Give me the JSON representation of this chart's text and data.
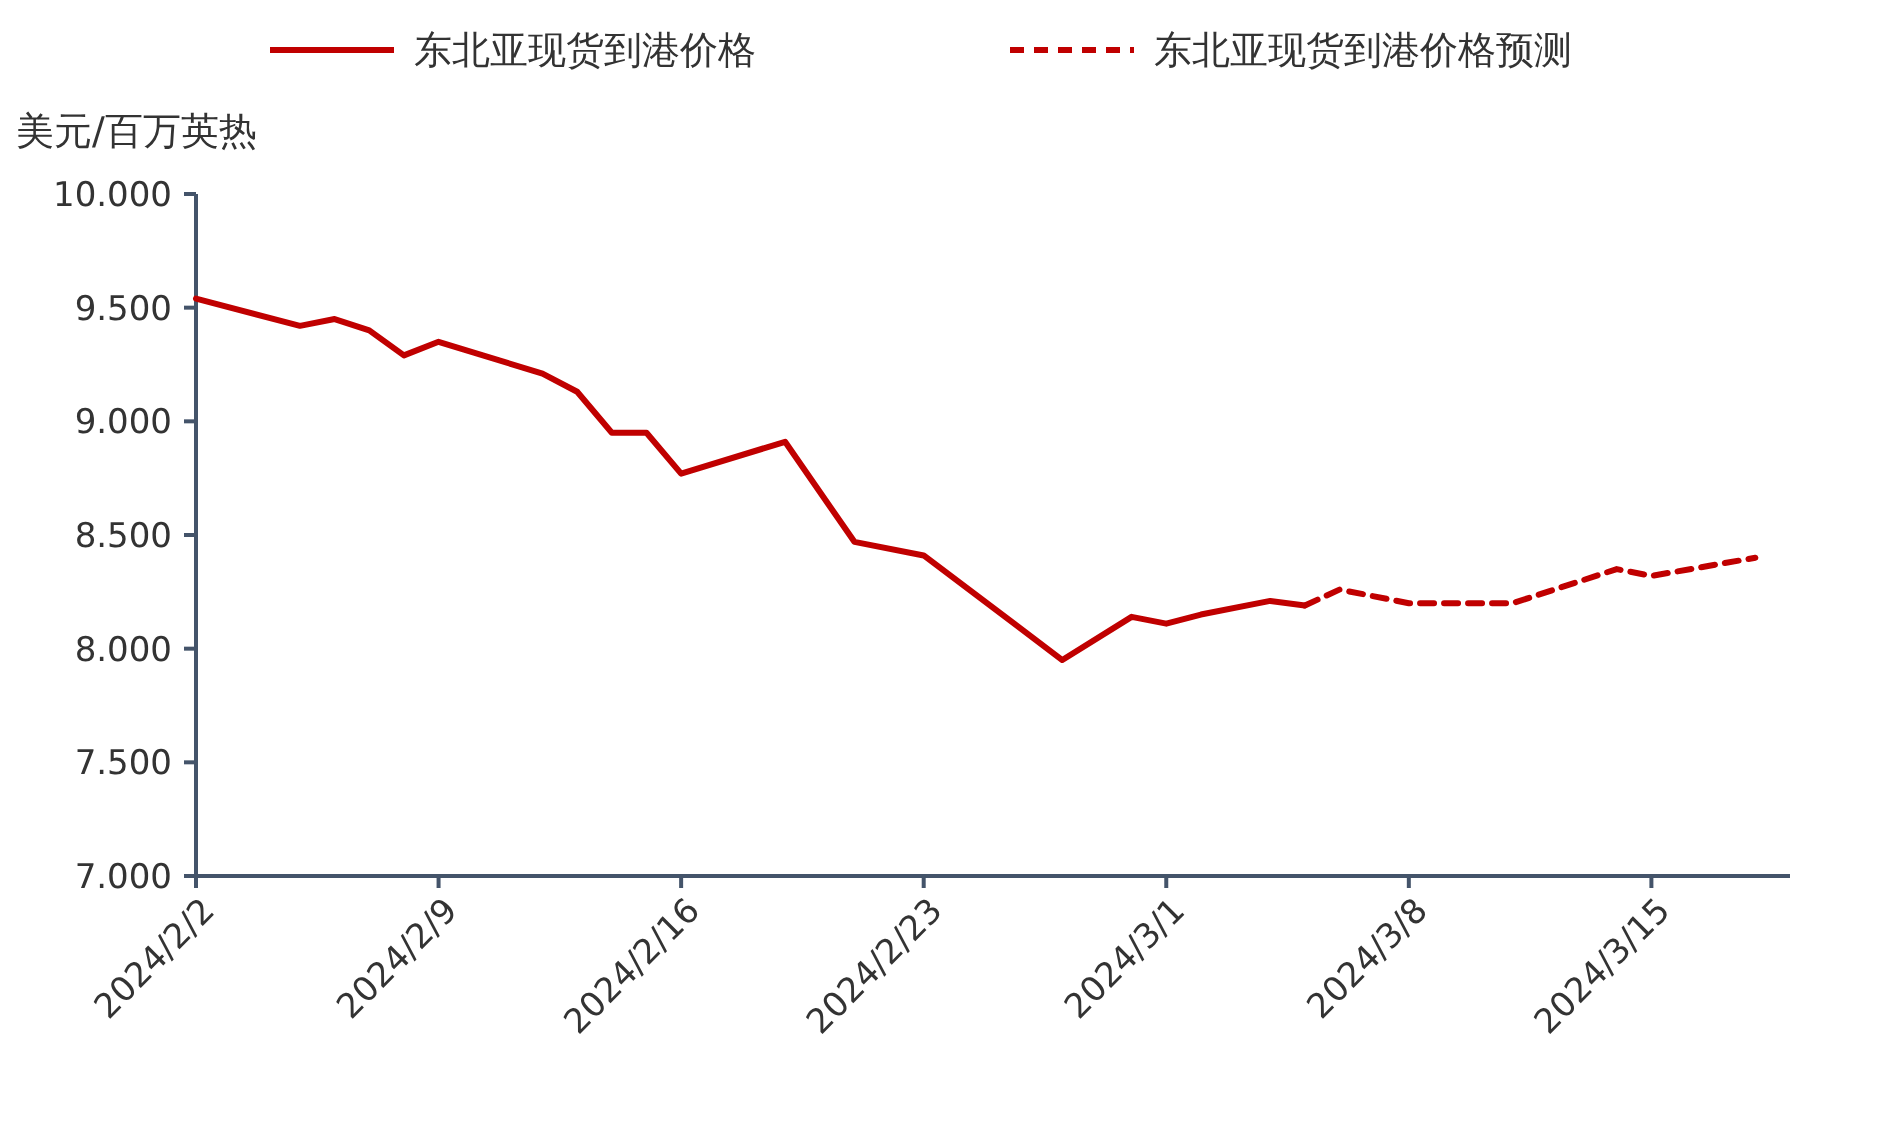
{
  "chart_data": {
    "type": "line",
    "ylabel": "美元/百万英热",
    "legend": "top",
    "marker": "none",
    "xlim": [
      "2024-02-02",
      "2024-03-19"
    ],
    "xticks": [
      {
        "value": "2024-02-02",
        "label": "2024/2/2"
      },
      {
        "value": "2024-02-09",
        "label": "2024/2/9"
      },
      {
        "value": "2024-02-16",
        "label": "2024/2/16"
      },
      {
        "value": "2024-02-23",
        "label": "2024/2/23"
      },
      {
        "value": "2024-03-01",
        "label": "2024/3/1"
      },
      {
        "value": "2024-03-08",
        "label": "2024/3/8"
      },
      {
        "value": "2024-03-15",
        "label": "2024/3/15"
      }
    ],
    "ylim": [
      7,
      10
    ],
    "yticks": [
      {
        "value": 7,
        "label": "7.000"
      },
      {
        "value": 7.5,
        "label": "7.500"
      },
      {
        "value": 8,
        "label": "8.000"
      },
      {
        "value": 8.5,
        "label": "8.500"
      },
      {
        "value": 9,
        "label": "9.000"
      },
      {
        "value": 9.5,
        "label": "9.500"
      },
      {
        "value": 10,
        "label": "10.000"
      }
    ],
    "grid": false,
    "series": [
      {
        "name": "东北亚现货到港价格",
        "color": "#c00000",
        "line_style": "solid",
        "x": [
          "2024-02-02",
          "2024-02-05",
          "2024-02-06",
          "2024-02-07",
          "2024-02-08",
          "2024-02-09",
          "2024-02-12",
          "2024-02-13",
          "2024-02-14",
          "2024-02-15",
          "2024-02-16",
          "2024-02-19",
          "2024-02-21",
          "2024-02-23",
          "2024-02-27",
          "2024-02-29",
          "2024-03-01",
          "2024-03-02",
          "2024-03-04",
          "2024-03-05"
        ],
        "values": [
          9.54,
          9.42,
          9.45,
          9.4,
          9.29,
          9.35,
          9.21,
          9.13,
          8.95,
          8.95,
          8.77,
          8.91,
          8.47,
          8.41,
          7.95,
          8.14,
          8.11,
          8.15,
          8.21,
          8.19
        ]
      },
      {
        "name": "东北亚现货到港价格预测",
        "color": "#c00000",
        "line_style": "dashed",
        "x": [
          "2024-03-05",
          "2024-03-06",
          "2024-03-08",
          "2024-03-11",
          "2024-03-14",
          "2024-03-15",
          "2024-03-18"
        ],
        "values": [
          8.19,
          8.26,
          8.2,
          8.2,
          8.35,
          8.32,
          8.4
        ]
      }
    ]
  }
}
